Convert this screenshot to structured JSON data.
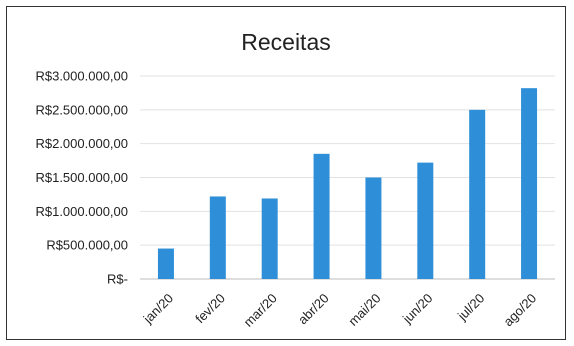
{
  "chart_data": {
    "type": "bar",
    "title": "Receitas",
    "xlabel": "",
    "ylabel": "",
    "categories": [
      "jan/20",
      "fev/20",
      "mar/20",
      "abr/20",
      "mai/20",
      "jun/20",
      "jul/20",
      "ago/20"
    ],
    "values": [
      450000,
      1220000,
      1190000,
      1850000,
      1500000,
      1720000,
      2500000,
      2820000
    ],
    "ylim": [
      0,
      3000000
    ],
    "yticks": [
      0,
      500000,
      1000000,
      1500000,
      2000000,
      2500000,
      3000000
    ],
    "ytick_labels": [
      "R$-",
      "R$500.000,00",
      "R$1.000.000,00",
      "R$1.500.000,00",
      "R$2.000.000,00",
      "R$2.500.000,00",
      "R$3.000.000,00"
    ],
    "bar_color": "#2E8FD8",
    "grid": true,
    "legend": "none"
  }
}
